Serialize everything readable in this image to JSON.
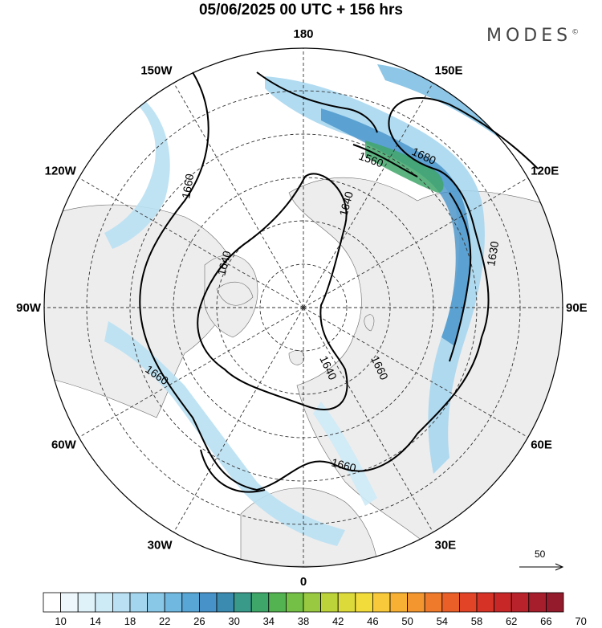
{
  "title": "05/06/2025  00 UTC  + 156 hrs",
  "brand": "MODES",
  "brand_mark": "©",
  "longitude_labels": [
    {
      "text": "180",
      "lon": 180
    },
    {
      "text": "150E",
      "lon": 150
    },
    {
      "text": "120E",
      "lon": 120
    },
    {
      "text": "90E",
      "lon": 90
    },
    {
      "text": "60E",
      "lon": 60
    },
    {
      "text": "30E",
      "lon": 30
    },
    {
      "text": "0",
      "lon": 0
    },
    {
      "text": "30W",
      "lon": -30
    },
    {
      "text": "60W",
      "lon": -60
    },
    {
      "text": "90W",
      "lon": -90
    },
    {
      "text": "120W",
      "lon": -120
    },
    {
      "text": "150W",
      "lon": -150
    }
  ],
  "contour_labels": [
    "1560",
    "1680",
    "1640",
    "1660",
    "1630",
    "1640",
    "1660",
    "1640",
    "1660",
    "1660"
  ],
  "reference_vector": "50",
  "colorbar": {
    "tick_labels": [
      "10",
      "14",
      "18",
      "22",
      "26",
      "30",
      "34",
      "38",
      "42",
      "46",
      "50",
      "54",
      "58",
      "62",
      "66",
      "70"
    ],
    "colors": [
      "#ffffff",
      "#eef8fc",
      "#dff2fa",
      "#cdeaf7",
      "#b9e0f3",
      "#a3d5ee",
      "#8ac8e8",
      "#70b8e0",
      "#58a6d6",
      "#4692c9",
      "#3b8bb0",
      "#3a9a8a",
      "#3fa66a",
      "#52b350",
      "#74bf45",
      "#98c940",
      "#bcd33a",
      "#dcda3a",
      "#f2dc3c",
      "#f8c93a",
      "#f7b034",
      "#f4962f",
      "#f07a2b",
      "#ea5e28",
      "#e14426",
      "#d63226",
      "#c82728",
      "#b8222a",
      "#a61e2b",
      "#941b2b"
    ]
  }
}
